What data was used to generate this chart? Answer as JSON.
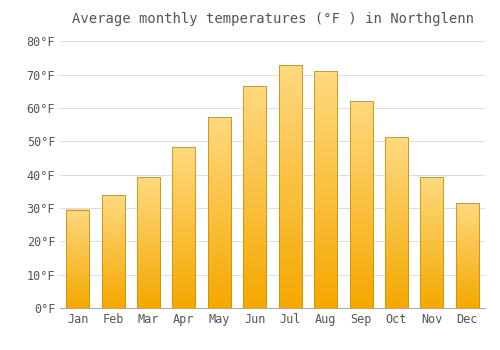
{
  "title": "Average monthly temperatures (°F ) in Northglenn",
  "months": [
    "Jan",
    "Feb",
    "Mar",
    "Apr",
    "May",
    "Jun",
    "Jul",
    "Aug",
    "Sep",
    "Oct",
    "Nov",
    "Dec"
  ],
  "values": [
    29.5,
    33.8,
    39.2,
    48.3,
    57.2,
    66.5,
    72.8,
    71.0,
    62.0,
    51.2,
    39.2,
    31.4
  ],
  "bar_color_bottom": "#F5A800",
  "bar_color_top": "#FFD980",
  "bar_edge_color": "#C8900A",
  "background_color": "#FFFFFF",
  "grid_color": "#DDDDDD",
  "text_color": "#555555",
  "ylim": [
    0,
    83
  ],
  "yticks": [
    0,
    10,
    20,
    30,
    40,
    50,
    60,
    70,
    80
  ],
  "ylabel_suffix": "°F",
  "title_fontsize": 10,
  "tick_fontsize": 8.5,
  "bar_width": 0.65
}
